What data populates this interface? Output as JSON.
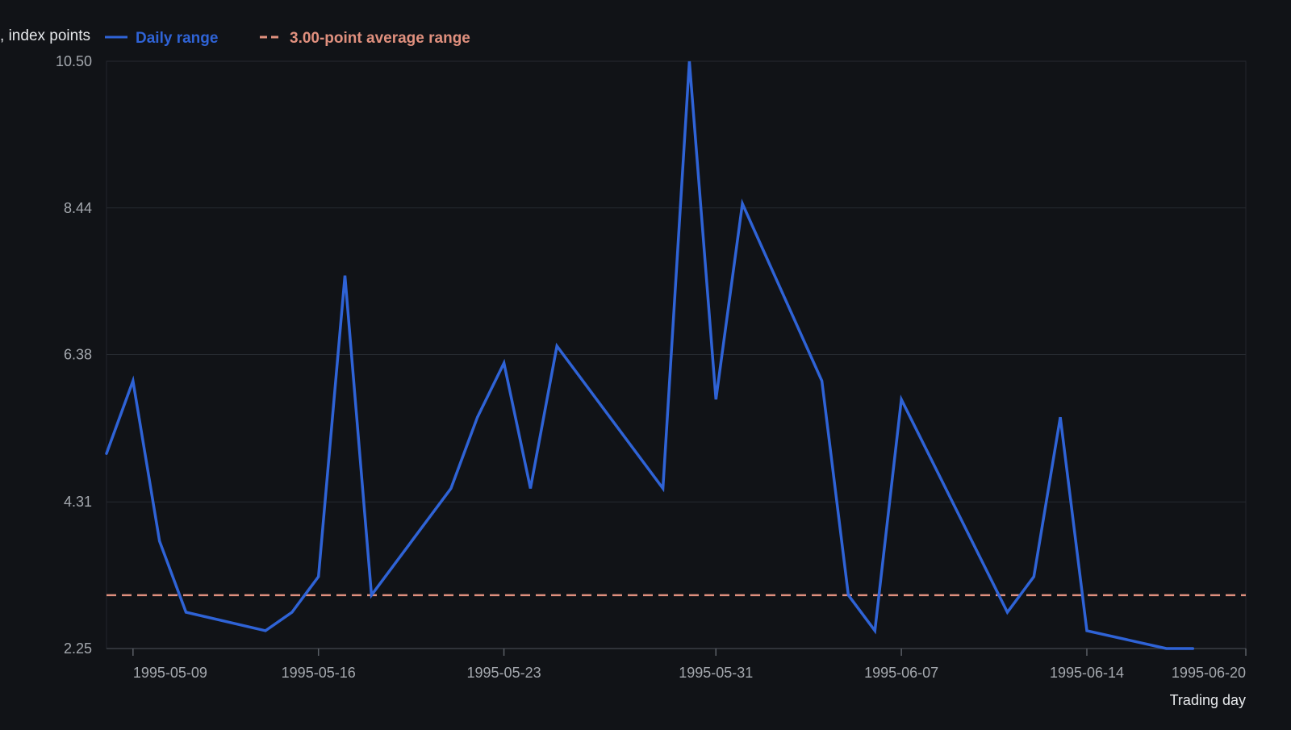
{
  "chart_data": {
    "type": "line",
    "ylabel": "Daily range, index points",
    "xlabel": "Trading day",
    "ylim": [
      2.25,
      10.5
    ],
    "yticks": [
      "2.25",
      "4.31",
      "6.38",
      "8.44",
      "10.50"
    ],
    "xlim": [
      "1995-05-08",
      "1995-06-20"
    ],
    "xticks": [
      "1995-05-09",
      "1995-05-16",
      "1995-05-23",
      "1995-05-31",
      "1995-06-07",
      "1995-06-14",
      "1995-06-20"
    ],
    "grid": "horizontal",
    "legend_position": "top-left",
    "series": [
      {
        "name": "Daily range",
        "color": "#2f63d6",
        "style": "solid",
        "x": [
          "1995-05-08",
          "1995-05-09",
          "1995-05-10",
          "1995-05-11",
          "1995-05-14",
          "1995-05-15",
          "1995-05-16",
          "1995-05-17",
          "1995-05-18",
          "1995-05-21",
          "1995-05-22",
          "1995-05-23",
          "1995-05-24",
          "1995-05-25",
          "1995-05-29",
          "1995-05-30",
          "1995-05-31",
          "1995-06-01",
          "1995-06-04",
          "1995-06-05",
          "1995-06-06",
          "1995-06-07",
          "1995-06-11",
          "1995-06-12",
          "1995-06-13",
          "1995-06-14",
          "1995-06-17",
          "1995-06-18"
        ],
        "values": [
          4.99,
          6.01,
          3.76,
          2.76,
          2.5,
          2.76,
          3.26,
          7.49,
          3.0,
          4.5,
          5.5,
          6.26,
          4.5,
          6.5,
          4.5,
          10.5,
          5.75,
          8.5,
          6.01,
          3.0,
          2.5,
          5.75,
          2.76,
          3.26,
          5.5,
          2.5,
          2.25,
          2.25
        ]
      },
      {
        "name": "3.00-point average range",
        "color": "#e0907e",
        "style": "dashed",
        "value": 3.0
      }
    ]
  }
}
